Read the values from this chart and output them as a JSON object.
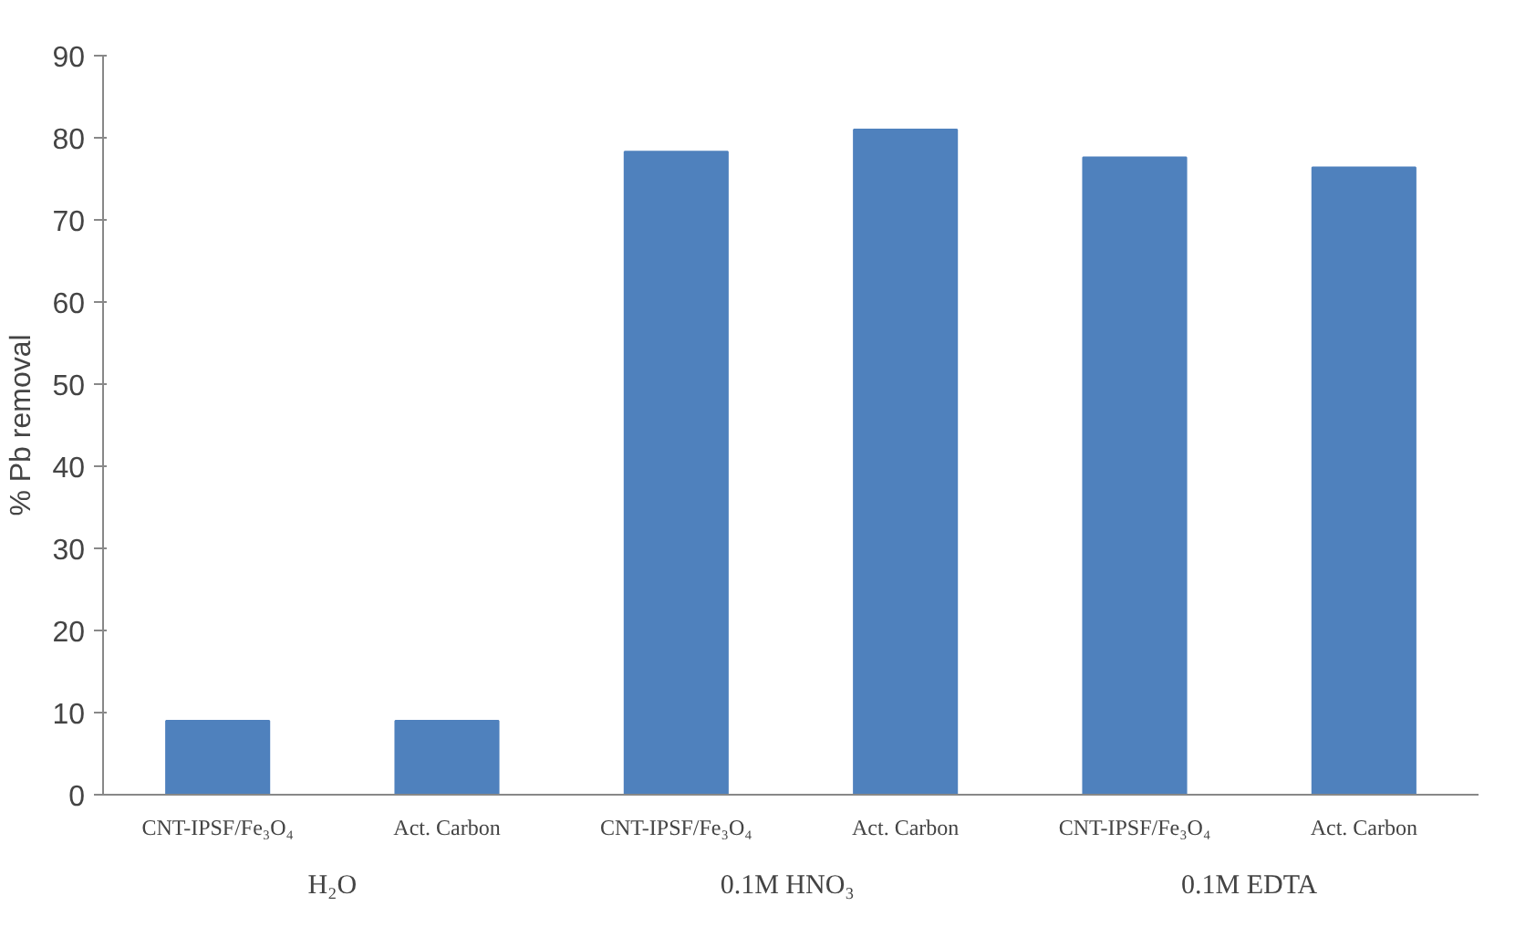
{
  "chart_data": {
    "type": "bar",
    "ylabel": "% Pb removal",
    "categories": [
      "CNT-IPSF/Fe₃O₄",
      "Act. Carbon",
      "CNT-IPSF/Fe₃O₄",
      "Act. Carbon",
      "CNT-IPSF/Fe₃O₄",
      "Act. Carbon"
    ],
    "values": [
      9.0,
      9.0,
      78.3,
      81.0,
      77.6,
      76.4
    ],
    "color": "#4f81bd",
    "ylim": [
      0,
      90
    ],
    "yticks": [
      0,
      10,
      20,
      30,
      40,
      50,
      60,
      70,
      80,
      90
    ],
    "annotations": [
      "H₂O",
      "0.1M  HNO₃",
      "0.1M EDTA"
    ]
  }
}
